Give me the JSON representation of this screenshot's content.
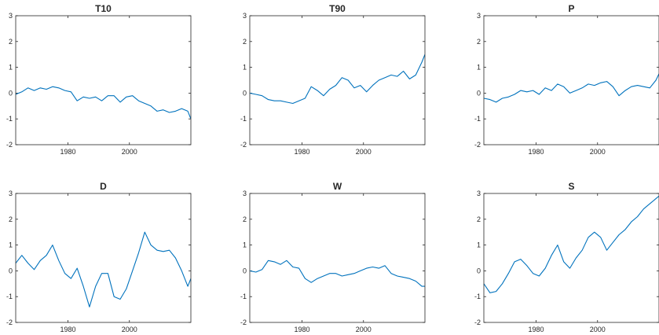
{
  "figure": {
    "line_color": "#0072BD",
    "frame_color": "#262626",
    "background": "#ffffff"
  },
  "chart_data": [
    {
      "type": "line",
      "title": "T10",
      "xlabel": "",
      "ylabel": "",
      "xlim": [
        1963,
        2020
      ],
      "ylim": [
        -2,
        3
      ],
      "xticks": [
        1980,
        2000
      ],
      "yticks": [
        -2,
        -1,
        0,
        1,
        2,
        3
      ],
      "series": [
        {
          "x": [
            1963,
            1965,
            1967,
            1969,
            1971,
            1973,
            1975,
            1977,
            1979,
            1981,
            1983,
            1985,
            1987,
            1989,
            1991,
            1993,
            1995,
            1997,
            1999,
            2001,
            2003,
            2005,
            2007,
            2009,
            2011,
            2013,
            2015,
            2017,
            2019,
            2020
          ],
          "y": [
            -0.05,
            0.05,
            0.2,
            0.1,
            0.2,
            0.15,
            0.25,
            0.2,
            0.1,
            0.05,
            -0.3,
            -0.15,
            -0.2,
            -0.15,
            -0.3,
            -0.1,
            -0.1,
            -0.35,
            -0.15,
            -0.1,
            -0.3,
            -0.4,
            -0.5,
            -0.7,
            -0.65,
            -0.75,
            -0.7,
            -0.6,
            -0.7,
            -1.0
          ]
        }
      ]
    },
    {
      "type": "line",
      "title": "T90",
      "xlabel": "",
      "ylabel": "",
      "xlim": [
        1963,
        2020
      ],
      "ylim": [
        -2,
        3
      ],
      "xticks": [
        1980,
        2000
      ],
      "yticks": [
        -2,
        -1,
        0,
        1,
        2,
        3
      ],
      "series": [
        {
          "x": [
            1963,
            1965,
            1967,
            1969,
            1971,
            1973,
            1975,
            1977,
            1979,
            1981,
            1983,
            1985,
            1987,
            1989,
            1991,
            1993,
            1995,
            1997,
            1999,
            2001,
            2003,
            2005,
            2007,
            2009,
            2011,
            2013,
            2015,
            2017,
            2019,
            2020
          ],
          "y": [
            0.0,
            -0.05,
            -0.1,
            -0.25,
            -0.3,
            -0.3,
            -0.35,
            -0.4,
            -0.3,
            -0.2,
            0.25,
            0.1,
            -0.1,
            0.15,
            0.3,
            0.6,
            0.5,
            0.2,
            0.3,
            0.05,
            0.3,
            0.5,
            0.6,
            0.7,
            0.65,
            0.85,
            0.55,
            0.7,
            1.2,
            1.5
          ]
        }
      ]
    },
    {
      "type": "line",
      "title": "P",
      "xlabel": "",
      "ylabel": "",
      "xlim": [
        1963,
        2020
      ],
      "ylim": [
        -2,
        3
      ],
      "xticks": [
        1980,
        2000
      ],
      "yticks": [
        -2,
        -1,
        0,
        1,
        2,
        3
      ],
      "series": [
        {
          "x": [
            1963,
            1965,
            1967,
            1969,
            1971,
            1973,
            1975,
            1977,
            1979,
            1981,
            1983,
            1985,
            1987,
            1989,
            1991,
            1993,
            1995,
            1997,
            1999,
            2001,
            2003,
            2005,
            2007,
            2009,
            2011,
            2013,
            2015,
            2017,
            2019,
            2020
          ],
          "y": [
            -0.2,
            -0.25,
            -0.35,
            -0.2,
            -0.15,
            -0.05,
            0.1,
            0.05,
            0.1,
            -0.05,
            0.2,
            0.1,
            0.35,
            0.25,
            0.0,
            0.1,
            0.2,
            0.35,
            0.3,
            0.4,
            0.45,
            0.25,
            -0.1,
            0.1,
            0.25,
            0.3,
            0.25,
            0.2,
            0.5,
            0.75
          ]
        }
      ]
    },
    {
      "type": "line",
      "title": "D",
      "xlabel": "",
      "ylabel": "",
      "xlim": [
        1963,
        2020
      ],
      "ylim": [
        -2,
        3
      ],
      "xticks": [
        1980,
        2000
      ],
      "yticks": [
        -2,
        -1,
        0,
        1,
        2,
        3
      ],
      "series": [
        {
          "x": [
            1963,
            1965,
            1967,
            1969,
            1971,
            1973,
            1975,
            1977,
            1979,
            1981,
            1983,
            1985,
            1987,
            1989,
            1991,
            1993,
            1995,
            1997,
            1999,
            2001,
            2003,
            2005,
            2007,
            2009,
            2011,
            2013,
            2015,
            2017,
            2019,
            2020
          ],
          "y": [
            0.3,
            0.6,
            0.3,
            0.05,
            0.4,
            0.6,
            1.0,
            0.4,
            -0.1,
            -0.3,
            0.1,
            -0.6,
            -1.4,
            -0.6,
            -0.1,
            -0.1,
            -1.0,
            -1.1,
            -0.7,
            0.0,
            0.7,
            1.5,
            1.0,
            0.8,
            0.75,
            0.8,
            0.5,
            0.0,
            -0.6,
            -0.3
          ]
        }
      ]
    },
    {
      "type": "line",
      "title": "W",
      "xlabel": "",
      "ylabel": "",
      "xlim": [
        1963,
        2020
      ],
      "ylim": [
        -2,
        3
      ],
      "xticks": [
        1980,
        2000
      ],
      "yticks": [
        -2,
        -1,
        0,
        1,
        2,
        3
      ],
      "series": [
        {
          "x": [
            1963,
            1965,
            1967,
            1969,
            1971,
            1973,
            1975,
            1977,
            1979,
            1981,
            1983,
            1985,
            1987,
            1989,
            1991,
            1993,
            1995,
            1997,
            1999,
            2001,
            2003,
            2005,
            2007,
            2009,
            2011,
            2013,
            2015,
            2017,
            2019,
            2020
          ],
          "y": [
            0.0,
            -0.05,
            0.05,
            0.4,
            0.35,
            0.25,
            0.4,
            0.15,
            0.1,
            -0.3,
            -0.45,
            -0.3,
            -0.2,
            -0.1,
            -0.1,
            -0.2,
            -0.15,
            -0.1,
            0.0,
            0.1,
            0.15,
            0.1,
            0.2,
            -0.1,
            -0.2,
            -0.25,
            -0.3,
            -0.4,
            -0.6,
            -0.6
          ]
        }
      ]
    },
    {
      "type": "line",
      "title": "S",
      "xlabel": "",
      "ylabel": "",
      "xlim": [
        1963,
        2020
      ],
      "ylim": [
        -2,
        3
      ],
      "xticks": [
        1980,
        2000
      ],
      "yticks": [
        -2,
        -1,
        0,
        1,
        2,
        3
      ],
      "series": [
        {
          "x": [
            1963,
            1965,
            1967,
            1969,
            1971,
            1973,
            1975,
            1977,
            1979,
            1981,
            1983,
            1985,
            1987,
            1989,
            1991,
            1993,
            1995,
            1997,
            1999,
            2001,
            2003,
            2005,
            2007,
            2009,
            2011,
            2013,
            2015,
            2017,
            2019,
            2020
          ],
          "y": [
            -0.5,
            -0.85,
            -0.8,
            -0.5,
            -0.1,
            0.35,
            0.45,
            0.2,
            -0.1,
            -0.2,
            0.1,
            0.6,
            1.0,
            0.35,
            0.1,
            0.5,
            0.8,
            1.3,
            1.5,
            1.3,
            0.8,
            1.1,
            1.4,
            1.6,
            1.9,
            2.1,
            2.4,
            2.6,
            2.8,
            2.9
          ]
        }
      ]
    }
  ]
}
